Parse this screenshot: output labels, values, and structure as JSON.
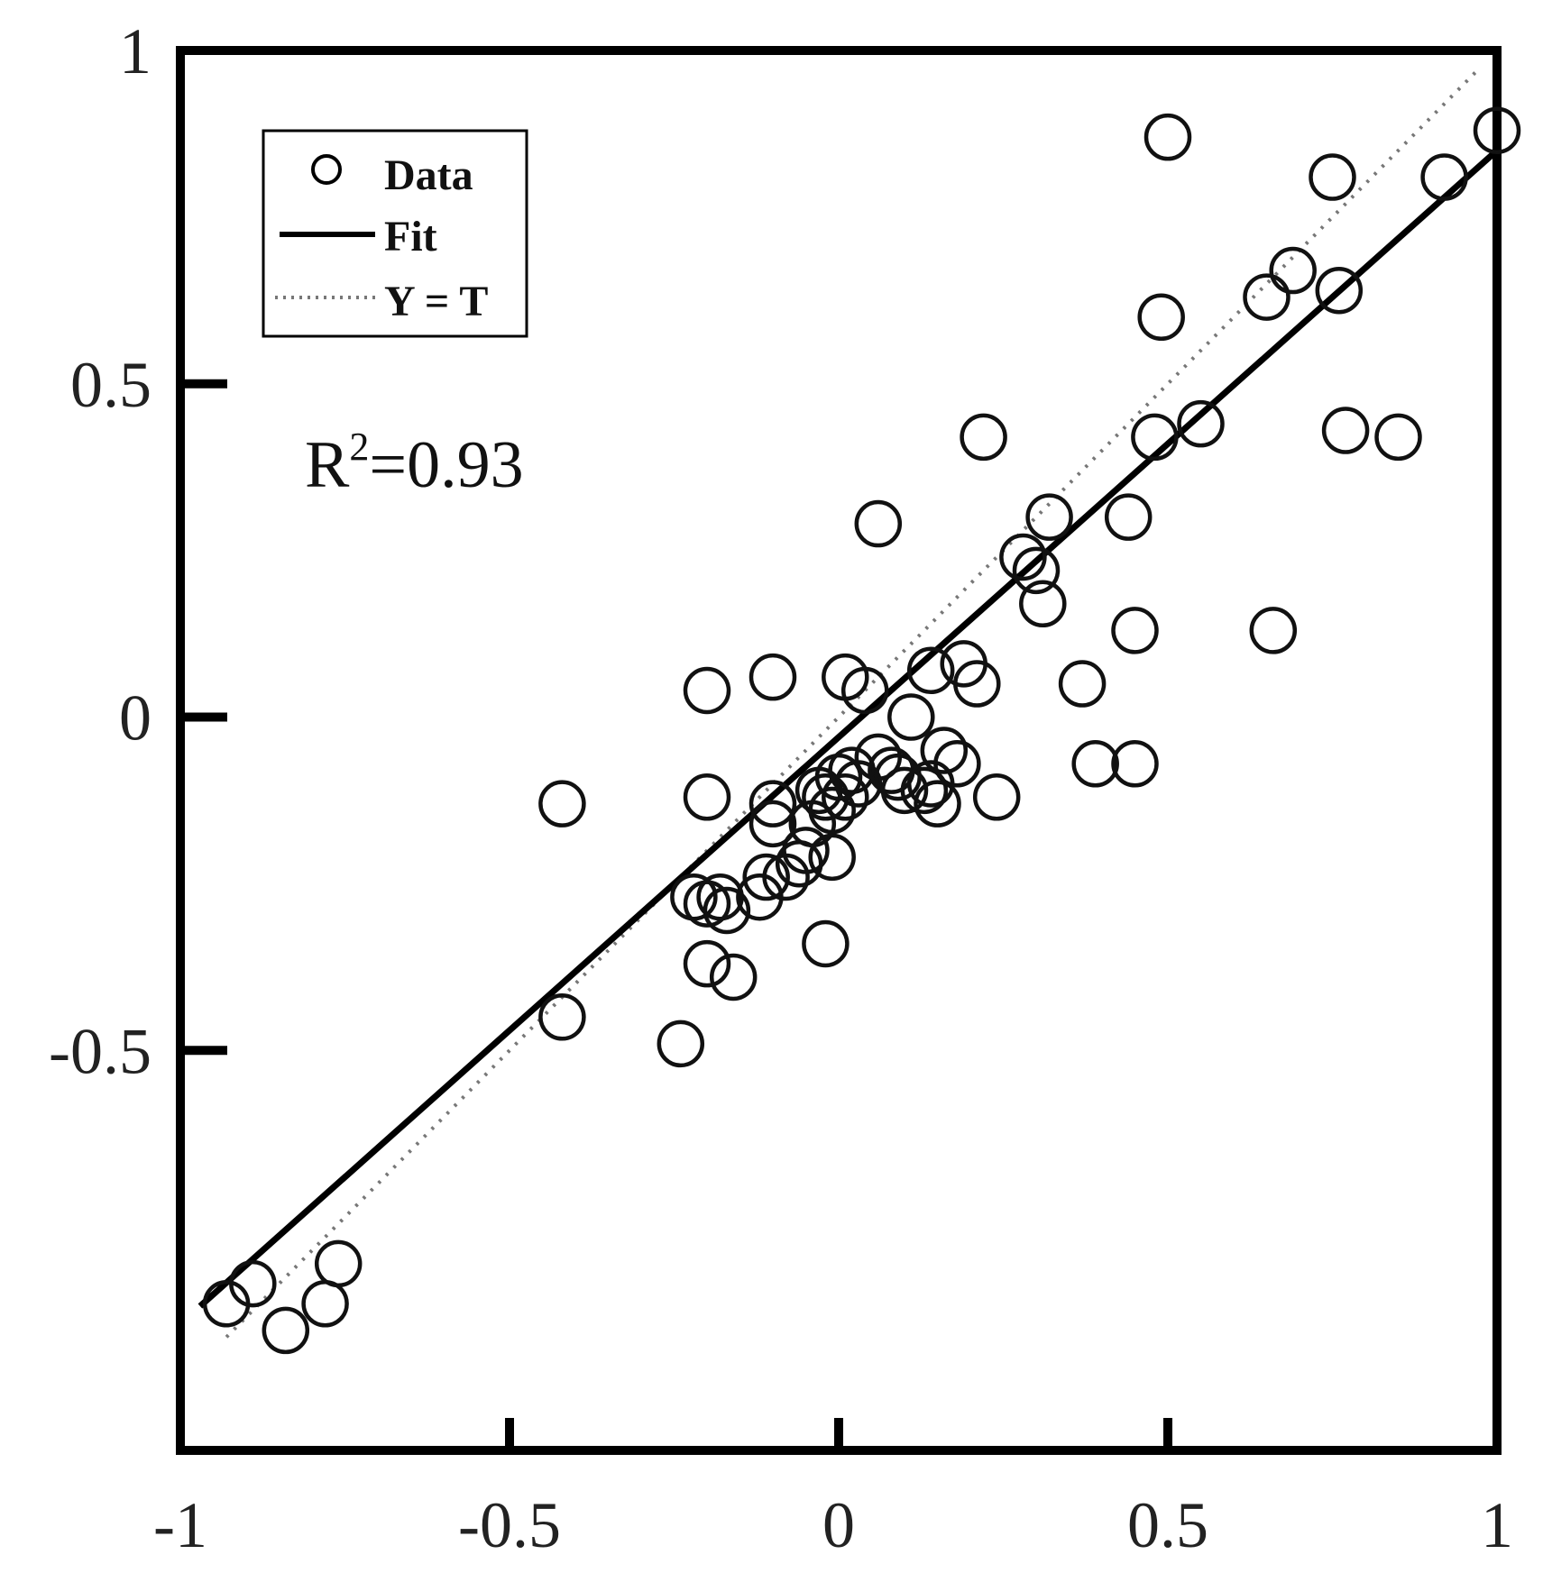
{
  "chart_data": {
    "type": "scatter",
    "title": "",
    "xlabel": "",
    "ylabel": "",
    "xlim": [
      -1,
      1
    ],
    "ylim": [
      -1.1,
      1
    ],
    "grid": false,
    "x_ticks": [
      {
        "value": -1,
        "label": "-1"
      },
      {
        "value": -0.5,
        "label": "-0.5"
      },
      {
        "value": 0,
        "label": "0"
      },
      {
        "value": 0.5,
        "label": "0.5"
      },
      {
        "value": 1,
        "label": "1"
      }
    ],
    "y_ticks": [
      {
        "value": -0.5,
        "label": "-0.5"
      },
      {
        "value": 0,
        "label": "0"
      },
      {
        "value": 0.5,
        "label": "0.5"
      },
      {
        "value": 1,
        "label": "1"
      }
    ],
    "legend": {
      "position": "top-left",
      "entries": [
        {
          "label": "Data",
          "style": "circle-marker"
        },
        {
          "label": "Fit",
          "style": "solid-line"
        },
        {
          "label": "Y = T",
          "style": "dotted-line"
        }
      ]
    },
    "annotation": {
      "prefix": "R",
      "superscript": "2",
      "suffix": "=0.93"
    },
    "fit_line": {
      "slope": 0.88,
      "intercept": -0.03,
      "x_range": [
        -0.97,
        1.0
      ]
    },
    "identity_line": {
      "x_range": [
        -0.93,
        0.97
      ]
    },
    "series": [
      {
        "name": "Data",
        "marker": "open-circle",
        "color": "#111111",
        "points": [
          [
            -0.93,
            -0.88
          ],
          [
            -0.89,
            -0.85
          ],
          [
            -0.84,
            -0.92
          ],
          [
            -0.78,
            -0.88
          ],
          [
            -0.76,
            -0.82
          ],
          [
            -0.42,
            -0.13
          ],
          [
            -0.42,
            -0.45
          ],
          [
            -0.24,
            -0.49
          ],
          [
            -0.22,
            -0.27
          ],
          [
            -0.2,
            -0.28
          ],
          [
            -0.2,
            -0.37
          ],
          [
            -0.2,
            0.04
          ],
          [
            -0.2,
            -0.12
          ],
          [
            -0.18,
            -0.27
          ],
          [
            -0.17,
            -0.29
          ],
          [
            -0.16,
            -0.39
          ],
          [
            -0.12,
            -0.27
          ],
          [
            -0.11,
            -0.24
          ],
          [
            -0.1,
            0.06
          ],
          [
            -0.1,
            -0.13
          ],
          [
            -0.1,
            -0.16
          ],
          [
            -0.08,
            -0.24
          ],
          [
            -0.06,
            -0.22
          ],
          [
            -0.05,
            -0.2
          ],
          [
            -0.04,
            -0.16
          ],
          [
            -0.03,
            -0.11
          ],
          [
            -0.02,
            -0.12
          ],
          [
            -0.02,
            -0.34
          ],
          [
            -0.01,
            -0.21
          ],
          [
            -0.01,
            -0.14
          ],
          [
            0.0,
            -0.09
          ],
          [
            0.01,
            0.06
          ],
          [
            0.01,
            -0.12
          ],
          [
            0.02,
            -0.08
          ],
          [
            0.03,
            -0.1
          ],
          [
            0.04,
            0.04
          ],
          [
            0.06,
            -0.06
          ],
          [
            0.06,
            0.29
          ],
          [
            0.08,
            -0.08
          ],
          [
            0.09,
            -0.09
          ],
          [
            0.1,
            -0.11
          ],
          [
            0.11,
            0.0
          ],
          [
            0.13,
            -0.11
          ],
          [
            0.14,
            -0.1
          ],
          [
            0.14,
            0.07
          ],
          [
            0.15,
            -0.13
          ],
          [
            0.16,
            -0.05
          ],
          [
            0.18,
            -0.07
          ],
          [
            0.19,
            0.08
          ],
          [
            0.21,
            0.05
          ],
          [
            0.22,
            0.42
          ],
          [
            0.24,
            -0.12
          ],
          [
            0.28,
            0.24
          ],
          [
            0.3,
            0.22
          ],
          [
            0.31,
            0.17
          ],
          [
            0.32,
            0.3
          ],
          [
            0.37,
            0.05
          ],
          [
            0.39,
            -0.07
          ],
          [
            0.44,
            0.3
          ],
          [
            0.45,
            0.13
          ],
          [
            0.45,
            -0.07
          ],
          [
            0.48,
            0.42
          ],
          [
            0.49,
            0.6
          ],
          [
            0.5,
            0.87
          ],
          [
            0.55,
            0.44
          ],
          [
            0.65,
            0.63
          ],
          [
            0.66,
            0.13
          ],
          [
            0.69,
            0.67
          ],
          [
            0.75,
            0.81
          ],
          [
            0.76,
            0.64
          ],
          [
            0.77,
            0.43
          ],
          [
            0.85,
            0.42
          ],
          [
            0.92,
            0.81
          ],
          [
            1.0,
            0.88
          ]
        ]
      }
    ]
  }
}
